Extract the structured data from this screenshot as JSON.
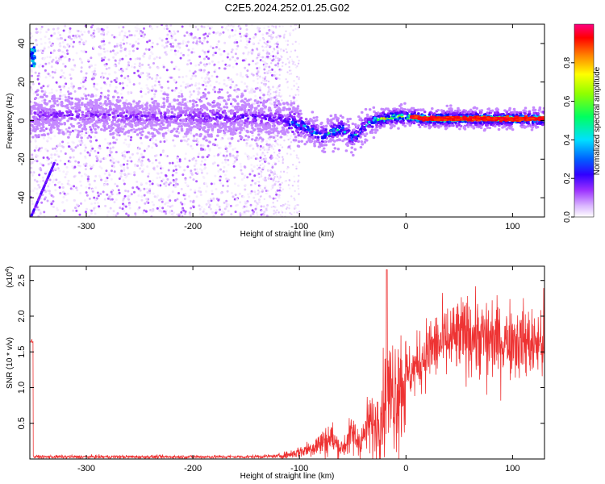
{
  "title": "C2E5.2024.252.01.25.G02",
  "chart_data": [
    {
      "type": "heatmap",
      "xlabel": "Height of straight line (km)",
      "ylabel": "Frequency (Hz)",
      "xlim": [
        -353,
        130
      ],
      "ylim": [
        -50,
        50
      ],
      "xticks": [
        -300,
        -200,
        -100,
        0,
        100
      ],
      "yticks": [
        -40,
        -20,
        0,
        20,
        40
      ],
      "colorbar": {
        "label": "Normalized spectral amplitude",
        "range": [
          0,
          1
        ],
        "ticks": [
          0.0,
          0.2,
          0.4,
          0.6,
          0.8
        ],
        "colormap": [
          "#ffffff",
          "#d9b3ff",
          "#9b30ff",
          "#5a00ff",
          "#0000ff",
          "#00c8ff",
          "#00ff80",
          "#7fff00",
          "#ffff00",
          "#ff8000",
          "#ff0000",
          "#ff0080"
        ]
      },
      "ridge": [
        {
          "x": -350,
          "y": 3
        },
        {
          "x": -300,
          "y": 3
        },
        {
          "x": -250,
          "y": 2
        },
        {
          "x": -200,
          "y": 2
        },
        {
          "x": -150,
          "y": 2
        },
        {
          "x": -120,
          "y": 1
        },
        {
          "x": -100,
          "y": -2
        },
        {
          "x": -90,
          "y": -5
        },
        {
          "x": -80,
          "y": -8
        },
        {
          "x": -70,
          "y": -6
        },
        {
          "x": -60,
          "y": -4
        },
        {
          "x": -50,
          "y": -9
        },
        {
          "x": -45,
          "y": -7
        },
        {
          "x": -40,
          "y": -3
        },
        {
          "x": -30,
          "y": 0
        },
        {
          "x": -20,
          "y": 1
        },
        {
          "x": -10,
          "y": 2
        },
        {
          "x": 0,
          "y": 2
        },
        {
          "x": 20,
          "y": 1
        },
        {
          "x": 60,
          "y": 1
        },
        {
          "x": 100,
          "y": 1
        },
        {
          "x": 130,
          "y": 1
        }
      ]
    },
    {
      "type": "line",
      "xlabel": "Height of straight line (km)",
      "ylabel": "SNR (10 * v/v)",
      "y_scale_label": "(x10",
      "y_scale_exponent": "4",
      "xlim": [
        -353,
        130
      ],
      "ylim": [
        0,
        27000
      ],
      "xticks": [
        -300,
        -200,
        -100,
        0,
        100
      ],
      "yticks": [
        0.5,
        1.0,
        1.5,
        2.0,
        2.5
      ],
      "color": "#ee3333",
      "series": [
        {
          "x": [
            -350,
            -300,
            -250,
            -200,
            -150,
            -120,
            -110,
            -100,
            -90,
            -80,
            -70,
            -65,
            -60,
            -55,
            -50,
            -45,
            -40,
            -35,
            -30,
            -25,
            -20,
            -15,
            -10,
            0,
            10,
            20,
            30,
            40,
            50,
            60,
            70,
            80,
            90,
            100,
            110,
            120,
            130
          ],
          "values": [
            300,
            300,
            300,
            300,
            300,
            400,
            600,
            1000,
            1500,
            2200,
            3000,
            2000,
            1500,
            2500,
            3500,
            2500,
            3000,
            5000,
            4500,
            6000,
            8000,
            9000,
            10000,
            11500,
            13000,
            15000,
            16000,
            16500,
            17000,
            17500,
            17000,
            17000,
            16500,
            17000,
            16500,
            16000,
            16500
          ]
        }
      ],
      "spike": {
        "x": -18,
        "value": 26500
      }
    }
  ]
}
